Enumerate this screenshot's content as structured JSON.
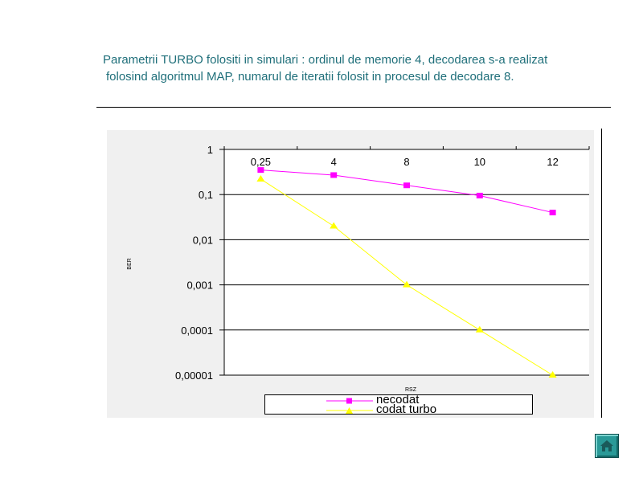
{
  "slide": {
    "title_line1": "Parametrii TURBO folositi in simulari : ordinul de memorie 4, decodarea s-a realizat",
    "title_line2": "folosind algoritmul MAP, numarul de iteratii folosit in procesul de decodare 8."
  },
  "chart_data": {
    "type": "line",
    "title": "",
    "xlabel": "RSZ",
    "ylabel": "BER",
    "y_scale": "log",
    "ylim": [
      1e-05,
      1
    ],
    "y_tick_labels": [
      "1",
      "0,1",
      "0,01",
      "0,001",
      "0,0001",
      "0,00001"
    ],
    "categories": [
      "0,25",
      "4",
      "8",
      "10",
      "12"
    ],
    "x_axis_position": "top",
    "grid": "horizontal",
    "legend_position": "bottom",
    "series": [
      {
        "name": "necodat",
        "color": "#ff00ff",
        "marker": "square",
        "values": [
          0.35,
          0.27,
          0.16,
          0.095,
          0.04
        ]
      },
      {
        "name": "codat turbo",
        "color": "#ffff00",
        "marker": "triangle",
        "values": [
          0.22,
          0.02,
          0.001,
          0.0001,
          1e-05
        ]
      }
    ]
  },
  "navigation": {
    "home_icon": "home-icon"
  }
}
